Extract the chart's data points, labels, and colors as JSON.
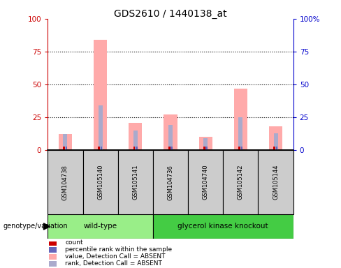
{
  "title": "GDS2610 / 1440138_at",
  "samples": [
    "GSM104738",
    "GSM105140",
    "GSM105141",
    "GSM104736",
    "GSM104740",
    "GSM105142",
    "GSM105144"
  ],
  "pink_bars": [
    12,
    84,
    21,
    27,
    10,
    47,
    18
  ],
  "blue_bars": [
    12,
    34,
    15,
    19,
    9,
    25,
    13
  ],
  "ylim": [
    0,
    100
  ],
  "yticks_left": [
    0,
    25,
    50,
    75,
    100
  ],
  "yticks_right": [
    0,
    25,
    50,
    75,
    100
  ],
  "left_color": "#cc0000",
  "right_color": "#0000cc",
  "pink_color": "#ffaaaa",
  "blue_bar_color": "#aaaacc",
  "red_sq_color": "#cc0000",
  "blue_sq_color": "#6666bb",
  "wt_color": "#99ee88",
  "gk_color": "#44cc44",
  "bg_color": "#cccccc",
  "wt_label": "wild-type",
  "gk_label": "glycerol kinase knockout",
  "genotype_label": "genotype/variation",
  "legend_labels": [
    "count",
    "percentile rank within the sample",
    "value, Detection Call = ABSENT",
    "rank, Detection Call = ABSENT"
  ],
  "legend_colors": [
    "#cc0000",
    "#6666bb",
    "#ffaaaa",
    "#aaaacc"
  ]
}
